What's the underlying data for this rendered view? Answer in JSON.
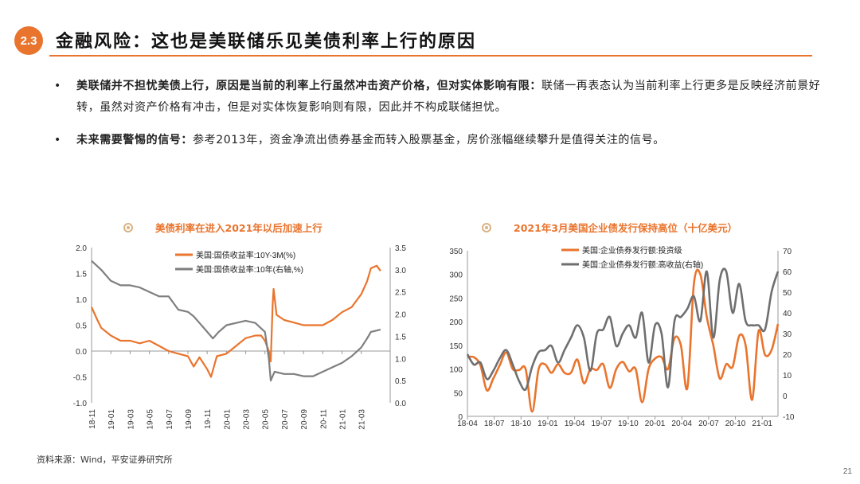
{
  "header": {
    "badge": "2.3",
    "title": "金融风险：这也是美联储乐见美债利率上行的原因"
  },
  "bullets": [
    {
      "symbol": "•",
      "bold": "美联储并不担忧美债上行，原因是当前的利率上行虽然冲击资产价格，但对实体影响有限：",
      "text": "联储一再表态认为当前利率上行更多是反映经济前景好转，虽然对资产价格有冲击，但是对实体恢复影响则有限，因此并不构成联储担忧。"
    },
    {
      "symbol": "•",
      "bold": "未来需要警惕的信号：",
      "text": "参考2013年，资金净流出债券基金而转入股票基金，房价涨幅继续攀升是值得关注的信号。"
    }
  ],
  "chart_data": [
    {
      "type": "line",
      "title": "美债利率在进入2021年以后加速上行",
      "x_ticks": [
        "18-11",
        "19-01",
        "19-03",
        "19-05",
        "19-07",
        "19-09",
        "19-11",
        "20-01",
        "20-03",
        "20-05",
        "20-07",
        "20-09",
        "20-11",
        "21-01",
        "21-03"
      ],
      "y_left": {
        "range": [
          -1.0,
          2.0
        ],
        "ticks": [
          "-1.0",
          "-0.5",
          "0.0",
          "0.5",
          "1.0",
          "1.5",
          "2.0"
        ]
      },
      "y_right": {
        "range": [
          0.0,
          3.5
        ],
        "ticks": [
          "0.0",
          "0.5",
          "1.0",
          "1.5",
          "2.0",
          "2.5",
          "3.0",
          "3.5"
        ]
      },
      "legend_position": "top-right",
      "series": [
        {
          "name": "美国:国债收益率:10Y-3M(%)",
          "axis": "left",
          "color": "#e9742d",
          "points": [
            [
              0,
              0.85
            ],
            [
              0.3,
              0.6
            ],
            [
              0.5,
              0.45
            ],
            [
              1.0,
              0.3
            ],
            [
              1.5,
              0.2
            ],
            [
              2.0,
              0.2
            ],
            [
              2.5,
              0.15
            ],
            [
              3.0,
              0.2
            ],
            [
              3.5,
              0.1
            ],
            [
              4.0,
              0.0
            ],
            [
              4.5,
              -0.05
            ],
            [
              5.0,
              -0.1
            ],
            [
              5.3,
              -0.3
            ],
            [
              5.6,
              -0.12
            ],
            [
              6.0,
              -0.35
            ],
            [
              6.2,
              -0.5
            ],
            [
              6.5,
              -0.1
            ],
            [
              7.0,
              -0.05
            ],
            [
              7.5,
              0.1
            ],
            [
              8.0,
              0.25
            ],
            [
              8.5,
              0.3
            ],
            [
              8.8,
              0.3
            ],
            [
              9.0,
              0.2
            ],
            [
              9.2,
              0.0
            ],
            [
              9.3,
              -0.2
            ],
            [
              9.4,
              0.9
            ],
            [
              9.45,
              1.2
            ],
            [
              9.6,
              0.7
            ],
            [
              10.0,
              0.6
            ],
            [
              10.5,
              0.55
            ],
            [
              11.0,
              0.5
            ],
            [
              11.5,
              0.5
            ],
            [
              12.0,
              0.5
            ],
            [
              12.5,
              0.6
            ],
            [
              13.0,
              0.75
            ],
            [
              13.5,
              0.85
            ],
            [
              14.0,
              1.1
            ],
            [
              14.3,
              1.35
            ],
            [
              14.5,
              1.6
            ],
            [
              14.8,
              1.65
            ],
            [
              15.0,
              1.55
            ]
          ]
        },
        {
          "name": "美国:国债收益率:10年(右轴,%)",
          "axis": "right",
          "color": "#7f7f7f",
          "points": [
            [
              0,
              3.2
            ],
            [
              0.5,
              3.0
            ],
            [
              1.0,
              2.75
            ],
            [
              1.5,
              2.65
            ],
            [
              2.0,
              2.65
            ],
            [
              2.5,
              2.6
            ],
            [
              3.0,
              2.5
            ],
            [
              3.5,
              2.4
            ],
            [
              4.0,
              2.4
            ],
            [
              4.5,
              2.1
            ],
            [
              5.0,
              2.05
            ],
            [
              5.3,
              1.95
            ],
            [
              5.6,
              1.8
            ],
            [
              6.0,
              1.6
            ],
            [
              6.3,
              1.45
            ],
            [
              6.6,
              1.6
            ],
            [
              7.0,
              1.75
            ],
            [
              7.5,
              1.8
            ],
            [
              8.0,
              1.85
            ],
            [
              8.5,
              1.8
            ],
            [
              9.0,
              1.6
            ],
            [
              9.2,
              1.0
            ],
            [
              9.3,
              0.5
            ],
            [
              9.5,
              0.7
            ],
            [
              10.0,
              0.65
            ],
            [
              10.5,
              0.65
            ],
            [
              11.0,
              0.6
            ],
            [
              11.5,
              0.6
            ],
            [
              12.0,
              0.7
            ],
            [
              12.5,
              0.8
            ],
            [
              13.0,
              0.9
            ],
            [
              13.5,
              1.05
            ],
            [
              14.0,
              1.25
            ],
            [
              14.3,
              1.45
            ],
            [
              14.5,
              1.6
            ],
            [
              15.0,
              1.65
            ]
          ]
        }
      ]
    },
    {
      "type": "line",
      "title": "2021年3月美国企业债发行保持高位（十亿美元）",
      "x_ticks": [
        "18-04",
        "18-07",
        "18-10",
        "19-01",
        "19-04",
        "19-07",
        "19-10",
        "20-01",
        "20-04",
        "20-07",
        "20-10",
        "21-01"
      ],
      "y_left": {
        "range": [
          0,
          350
        ],
        "ticks": [
          "0",
          "50",
          "100",
          "150",
          "200",
          "250",
          "300",
          "350"
        ]
      },
      "y_right": {
        "range": [
          -10,
          70
        ],
        "ticks": [
          "-10",
          "0",
          "10",
          "20",
          "30",
          "40",
          "50",
          "60",
          "70"
        ]
      },
      "legend_position": "top-left",
      "series": [
        {
          "name": "美国:企业债券发行额:投资级",
          "axis": "left",
          "color": "#e9742d",
          "values": [
            125,
            125,
            108,
            55,
            80,
            108,
            135,
            100,
            98,
            100,
            10,
            100,
            110,
            92,
            110,
            92,
            92,
            120,
            70,
            100,
            98,
            110,
            60,
            100,
            115,
            95,
            100,
            30,
            100,
            122,
            125,
            100,
            165,
            150,
            60,
            280,
            300,
            210,
            150,
            80,
            110,
            105,
            170,
            150,
            35,
            180,
            130,
            140,
            195
          ]
        },
        {
          "name": "美国:企业债券发行额:高收益(右轴)",
          "axis": "right",
          "color": "#6f6f6f",
          "values": [
            20,
            15,
            16,
            8,
            12,
            18,
            22,
            15,
            7,
            3,
            14,
            21,
            22,
            24,
            16,
            22,
            28,
            34,
            28,
            12,
            30,
            32,
            38,
            24,
            30,
            34,
            28,
            40,
            16,
            34,
            30,
            4,
            36,
            38,
            42,
            48,
            36,
            60,
            28,
            56,
            60,
            40,
            54,
            36,
            34,
            34,
            32,
            50,
            60
          ]
        }
      ]
    }
  ],
  "source": "资料来源：Wind，平安证券研究所",
  "page_number": "21"
}
